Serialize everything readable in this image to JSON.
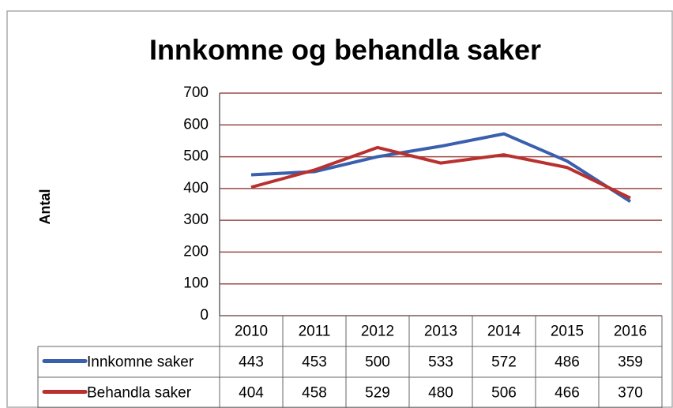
{
  "chart_data": {
    "type": "line",
    "title": "Innkomne og behandla saker",
    "y_label": "Antal",
    "categories": [
      "2010",
      "2011",
      "2012",
      "2013",
      "2014",
      "2015",
      "2016"
    ],
    "series": [
      {
        "name": "Innkomne saker",
        "color": "#3a5fad",
        "values": [
          443,
          453,
          500,
          533,
          572,
          486,
          359
        ]
      },
      {
        "name": "Behandla saker",
        "color": "#b8312f",
        "values": [
          404,
          458,
          529,
          480,
          506,
          466,
          370
        ]
      }
    ],
    "ylim": [
      0,
      700
    ],
    "yticks": [
      0,
      100,
      200,
      300,
      400,
      500,
      600,
      700
    ],
    "grid": true,
    "data_table": true
  }
}
